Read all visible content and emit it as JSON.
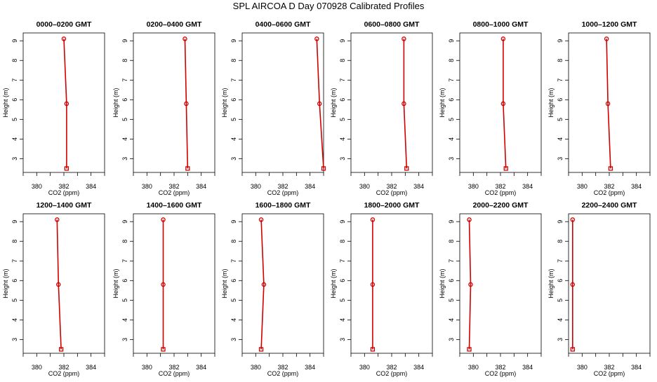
{
  "title": "SPL AIRCOA D  Day 070928  Calibrated Profiles",
  "colors": {
    "profile": "#d00000",
    "axes": "#000000"
  },
  "chart_data": [
    {
      "type": "line",
      "title": "0000–0200 GMT",
      "xlabel": "CO2 (ppm)",
      "ylabel": "Height (m)",
      "xlim": [
        379,
        385
      ],
      "ylim": [
        2.3,
        9.4
      ],
      "xticks": [
        "380",
        "382",
        "384"
      ],
      "yticks": [
        "3",
        "4",
        "5",
        "6",
        "7",
        "8",
        "9"
      ],
      "points": [
        {
          "x": 382.0,
          "y": 9.1
        },
        {
          "x": 382.2,
          "y": 5.8
        },
        {
          "x": 382.2,
          "y": 2.5
        }
      ]
    },
    {
      "type": "line",
      "title": "0200–0400 GMT",
      "xlabel": "CO2 (ppm)",
      "ylabel": "Height (m)",
      "xlim": [
        379,
        385
      ],
      "ylim": [
        2.3,
        9.4
      ],
      "xticks": [
        "380",
        "382",
        "384"
      ],
      "yticks": [
        "3",
        "4",
        "5",
        "6",
        "7",
        "8",
        "9"
      ],
      "points": [
        {
          "x": 382.8,
          "y": 9.1
        },
        {
          "x": 382.9,
          "y": 5.8
        },
        {
          "x": 383.0,
          "y": 2.5
        }
      ]
    },
    {
      "type": "line",
      "title": "0400–0600 GMT",
      "xlabel": "CO2 (ppm)",
      "ylabel": "Height (m)",
      "xlim": [
        379,
        385
      ],
      "ylim": [
        2.3,
        9.4
      ],
      "xticks": [
        "380",
        "382",
        "384"
      ],
      "yticks": [
        "3",
        "4",
        "5",
        "6",
        "7",
        "8",
        "9"
      ],
      "points": [
        {
          "x": 384.5,
          "y": 9.1
        },
        {
          "x": 384.7,
          "y": 5.8
        },
        {
          "x": 385.0,
          "y": 2.5
        }
      ]
    },
    {
      "type": "line",
      "title": "0600–0800 GMT",
      "xlabel": "CO2 (ppm)",
      "ylabel": "Height (m)",
      "xlim": [
        379,
        385
      ],
      "ylim": [
        2.3,
        9.4
      ],
      "xticks": [
        "380",
        "382",
        "384"
      ],
      "yticks": [
        "3",
        "4",
        "5",
        "6",
        "7",
        "8",
        "9"
      ],
      "points": [
        {
          "x": 382.9,
          "y": 9.1
        },
        {
          "x": 382.9,
          "y": 5.8
        },
        {
          "x": 383.1,
          "y": 2.5
        }
      ]
    },
    {
      "type": "line",
      "title": "0800–1000 GMT",
      "xlabel": "CO2 (ppm)",
      "ylabel": "Height (m)",
      "xlim": [
        379,
        385
      ],
      "ylim": [
        2.3,
        9.4
      ],
      "xticks": [
        "380",
        "382",
        "384"
      ],
      "yticks": [
        "3",
        "4",
        "5",
        "6",
        "7",
        "8",
        "9"
      ],
      "points": [
        {
          "x": 382.2,
          "y": 9.1
        },
        {
          "x": 382.2,
          "y": 5.8
        },
        {
          "x": 382.4,
          "y": 2.5
        }
      ]
    },
    {
      "type": "line",
      "title": "1000–1200 GMT",
      "xlabel": "CO2 (ppm)",
      "ylabel": "Height (m)",
      "xlim": [
        379,
        385
      ],
      "ylim": [
        2.3,
        9.4
      ],
      "xticks": [
        "380",
        "382",
        "384"
      ],
      "yticks": [
        "3",
        "4",
        "5",
        "6",
        "7",
        "8",
        "9"
      ],
      "points": [
        {
          "x": 381.8,
          "y": 9.1
        },
        {
          "x": 381.9,
          "y": 5.8
        },
        {
          "x": 382.1,
          "y": 2.5
        }
      ]
    },
    {
      "type": "line",
      "title": "1200–1400 GMT",
      "xlabel": "CO2 (ppm)",
      "ylabel": "Height (m)",
      "xlim": [
        379,
        385
      ],
      "ylim": [
        2.3,
        9.4
      ],
      "xticks": [
        "380",
        "382",
        "384"
      ],
      "yticks": [
        "3",
        "4",
        "5",
        "6",
        "7",
        "8",
        "9"
      ],
      "points": [
        {
          "x": 381.5,
          "y": 9.1
        },
        {
          "x": 381.6,
          "y": 5.8
        },
        {
          "x": 381.8,
          "y": 2.5
        }
      ]
    },
    {
      "type": "line",
      "title": "1400–1600 GMT",
      "xlabel": "CO2 (ppm)",
      "ylabel": "Height (m)",
      "xlim": [
        379,
        385
      ],
      "ylim": [
        2.3,
        9.4
      ],
      "xticks": [
        "380",
        "382",
        "384"
      ],
      "yticks": [
        "3",
        "4",
        "5",
        "6",
        "7",
        "8",
        "9"
      ],
      "points": [
        {
          "x": 381.2,
          "y": 9.1
        },
        {
          "x": 381.2,
          "y": 5.8
        },
        {
          "x": 381.2,
          "y": 2.5
        }
      ]
    },
    {
      "type": "line",
      "title": "1600–1800 GMT",
      "xlabel": "CO2 (ppm)",
      "ylabel": "Height (m)",
      "xlim": [
        379,
        385
      ],
      "ylim": [
        2.3,
        9.4
      ],
      "xticks": [
        "380",
        "382",
        "384"
      ],
      "yticks": [
        "3",
        "4",
        "5",
        "6",
        "7",
        "8",
        "9"
      ],
      "points": [
        {
          "x": 380.4,
          "y": 9.1
        },
        {
          "x": 380.6,
          "y": 5.8
        },
        {
          "x": 380.4,
          "y": 2.5
        }
      ]
    },
    {
      "type": "line",
      "title": "1800–2000 GMT",
      "xlabel": "CO2 (ppm)",
      "ylabel": "Height (m)",
      "xlim": [
        379,
        385
      ],
      "ylim": [
        2.3,
        9.4
      ],
      "xticks": [
        "380",
        "382",
        "384"
      ],
      "yticks": [
        "3",
        "4",
        "5",
        "6",
        "7",
        "8",
        "9"
      ],
      "points": [
        {
          "x": 380.6,
          "y": 9.1
        },
        {
          "x": 380.6,
          "y": 5.8
        },
        {
          "x": 380.6,
          "y": 2.5
        }
      ]
    },
    {
      "type": "line",
      "title": "2000–2200 GMT",
      "xlabel": "CO2 (ppm)",
      "ylabel": "Height (m)",
      "xlim": [
        379,
        385
      ],
      "ylim": [
        2.3,
        9.4
      ],
      "xticks": [
        "380",
        "382",
        "384"
      ],
      "yticks": [
        "3",
        "4",
        "5",
        "6",
        "7",
        "8",
        "9"
      ],
      "points": [
        {
          "x": 379.7,
          "y": 9.1
        },
        {
          "x": 379.8,
          "y": 5.8
        },
        {
          "x": 379.7,
          "y": 2.5
        }
      ]
    },
    {
      "type": "line",
      "title": "2200–2400 GMT",
      "xlabel": "CO2 (ppm)",
      "ylabel": "Height (m)",
      "xlim": [
        379,
        385
      ],
      "ylim": [
        2.3,
        9.4
      ],
      "xticks": [
        "380",
        "382",
        "384"
      ],
      "yticks": [
        "3",
        "4",
        "5",
        "6",
        "7",
        "8",
        "9"
      ],
      "points": [
        {
          "x": 379.3,
          "y": 9.1
        },
        {
          "x": 379.3,
          "y": 5.8
        },
        {
          "x": 379.3,
          "y": 2.5
        }
      ]
    }
  ]
}
